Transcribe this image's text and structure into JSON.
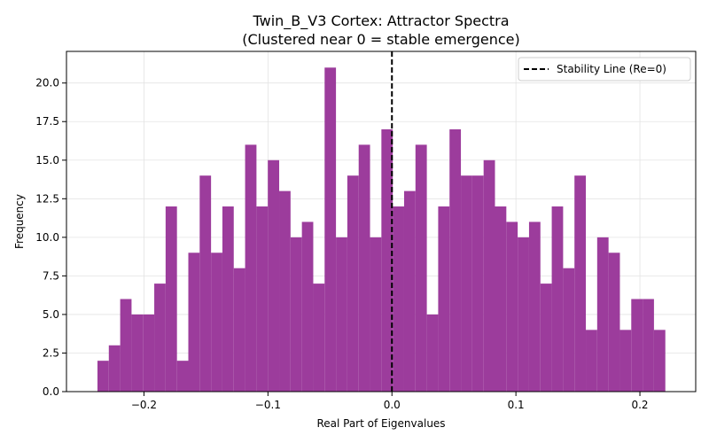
{
  "chart_data": {
    "type": "bar",
    "title": "Twin_B_V3 Cortex: Attractor Spectra",
    "subtitle": "(Clustered near 0 = stable emergence)",
    "xlabel": "Real Part of Eigenvalues",
    "ylabel": "Frequency",
    "xlim": [
      -0.2625,
      0.245
    ],
    "ylim": [
      0,
      22.05
    ],
    "x_ticks": [
      -0.2,
      -0.1,
      0.0,
      0.1,
      0.2
    ],
    "x_tick_labels": [
      "−0.2",
      "−0.1",
      "0.0",
      "0.1",
      "0.2"
    ],
    "y_ticks": [
      0,
      2.5,
      5,
      7.5,
      10,
      12.5,
      15,
      17.5,
      20
    ],
    "y_tick_labels": [
      "0.0",
      "2.5",
      "5.0",
      "7.5",
      "10.0",
      "12.5",
      "15.0",
      "17.5",
      "20.0"
    ],
    "grid": true,
    "bar_color": "#9c3c9c",
    "bin_start": -0.2375,
    "bin_end": 0.2205,
    "values": [
      2,
      3,
      6,
      5,
      5,
      7,
      12,
      2,
      9,
      14,
      9,
      12,
      8,
      16,
      12,
      15,
      13,
      10,
      11,
      7,
      21,
      10,
      14,
      16,
      10,
      17,
      12,
      13,
      16,
      5,
      12,
      17,
      14,
      14,
      15,
      12,
      11,
      10,
      11,
      7,
      12,
      8,
      14,
      4,
      10,
      9,
      4,
      6,
      6,
      4
    ],
    "reference_line": {
      "x": 0,
      "label": "Stability Line (Re=0)",
      "style": "dashed",
      "color": "#000000"
    },
    "legend": {
      "placement": "top-right",
      "entries": [
        "Stability Line (Re=0)"
      ]
    }
  }
}
